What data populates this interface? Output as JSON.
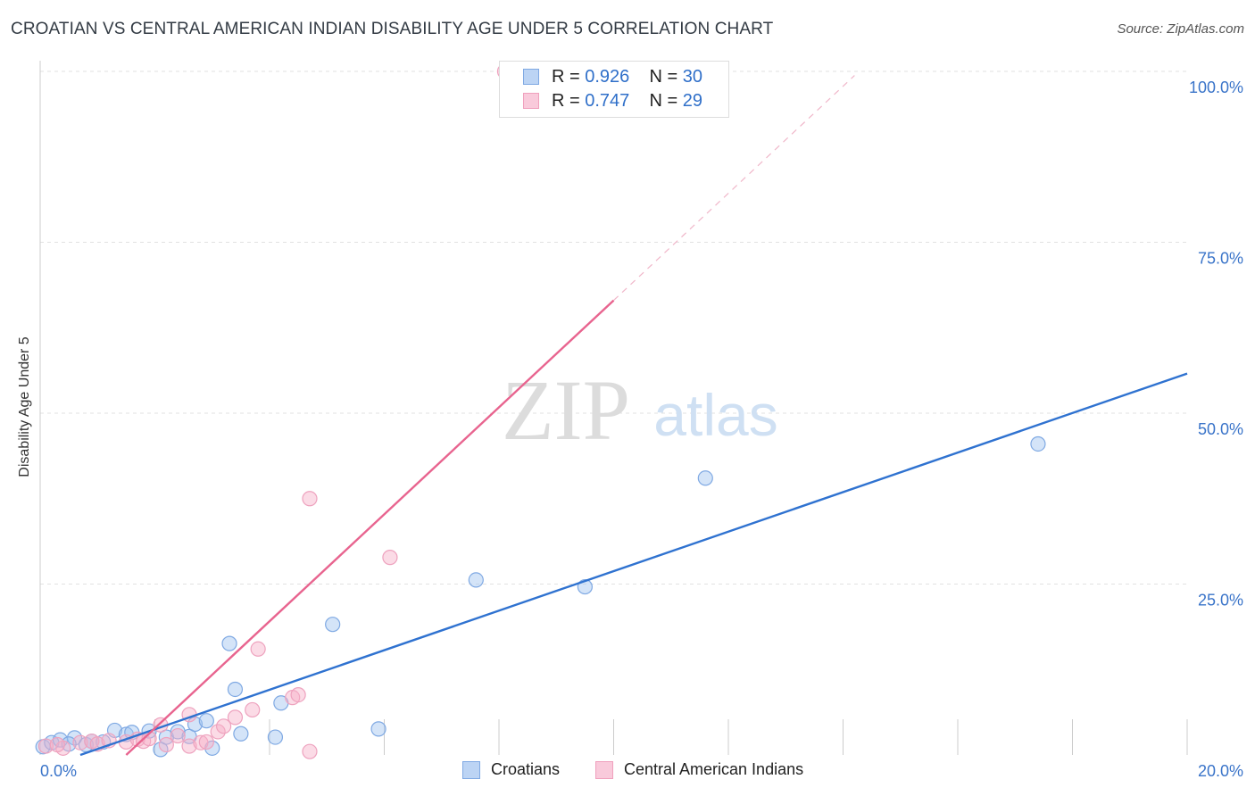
{
  "title": "CROATIAN VS CENTRAL AMERICAN INDIAN DISABILITY AGE UNDER 5 CORRELATION CHART",
  "source": "Source: ZipAtlas.com",
  "watermark": {
    "zip": "ZIP",
    "atlas": "atlas"
  },
  "legend": {
    "series1": {
      "r_label": "R = ",
      "r_value": "0.926",
      "n_label": "N = ",
      "n_value": "30"
    },
    "series2": {
      "r_label": "R = ",
      "r_value": "0.747",
      "n_label": "N = ",
      "n_value": "29"
    }
  },
  "chart_data": {
    "type": "scatter",
    "title": "CROATIAN VS CENTRAL AMERICAN INDIAN DISABILITY AGE UNDER 5 CORRELATION CHART",
    "xlabel": "",
    "ylabel": "Disability Age Under 5",
    "xlim": [
      0,
      20
    ],
    "ylim": [
      0,
      100
    ],
    "x_tick_labels": [
      "0.0%",
      "20.0%"
    ],
    "y_ticks": [
      25,
      50,
      75,
      100
    ],
    "y_tick_labels": [
      "25.0%",
      "50.0%",
      "75.0%",
      "100.0%"
    ],
    "grid": true,
    "legend_position": "top-center",
    "series": [
      {
        "name": "Croatians",
        "color": "#8ab4e8",
        "line_color": "#2f72d0",
        "r": 0.926,
        "n": 30,
        "trend": {
          "x": [
            0.7,
            20.0
          ],
          "y": [
            0.0,
            55.8
          ]
        },
        "points": [
          [
            0.05,
            1.2
          ],
          [
            0.2,
            1.8
          ],
          [
            0.35,
            2.2
          ],
          [
            0.6,
            2.5
          ],
          [
            0.8,
            1.5
          ],
          [
            0.9,
            2.0
          ],
          [
            1.1,
            1.9
          ],
          [
            1.3,
            3.6
          ],
          [
            1.5,
            3.0
          ],
          [
            1.6,
            3.3
          ],
          [
            1.9,
            3.5
          ],
          [
            2.1,
            0.8
          ],
          [
            2.2,
            2.6
          ],
          [
            2.4,
            3.4
          ],
          [
            2.6,
            2.7
          ],
          [
            2.7,
            4.5
          ],
          [
            2.9,
            5.0
          ],
          [
            3.0,
            1.0
          ],
          [
            3.3,
            16.3
          ],
          [
            3.4,
            9.6
          ],
          [
            3.5,
            3.1
          ],
          [
            4.1,
            2.6
          ],
          [
            4.2,
            7.6
          ],
          [
            5.1,
            19.1
          ],
          [
            5.9,
            3.8
          ],
          [
            7.6,
            25.6
          ],
          [
            9.5,
            24.6
          ],
          [
            11.6,
            40.5
          ],
          [
            17.4,
            45.5
          ],
          [
            0.5,
            1.6
          ]
        ]
      },
      {
        "name": "Central American Indians",
        "color": "#f4a8c2",
        "line_color": "#e8648f",
        "r": 0.747,
        "n": 29,
        "trend": {
          "x": [
            1.5,
            10.0
          ],
          "y": [
            0.0,
            66.5
          ],
          "dash_to": {
            "x": 14.2,
            "y": 99.4
          }
        },
        "points": [
          [
            0.1,
            1.3
          ],
          [
            0.4,
            1.0
          ],
          [
            0.7,
            1.8
          ],
          [
            0.9,
            2.0
          ],
          [
            1.0,
            1.6
          ],
          [
            1.2,
            2.1
          ],
          [
            1.5,
            1.9
          ],
          [
            1.7,
            2.3
          ],
          [
            1.8,
            2.0
          ],
          [
            1.9,
            2.4
          ],
          [
            2.2,
            1.5
          ],
          [
            2.1,
            4.4
          ],
          [
            2.4,
            2.8
          ],
          [
            2.6,
            1.3
          ],
          [
            2.6,
            5.9
          ],
          [
            2.8,
            1.8
          ],
          [
            2.9,
            1.9
          ],
          [
            3.1,
            3.4
          ],
          [
            3.2,
            4.2
          ],
          [
            3.4,
            5.5
          ],
          [
            3.7,
            6.6
          ],
          [
            3.8,
            15.5
          ],
          [
            4.4,
            8.4
          ],
          [
            4.5,
            8.8
          ],
          [
            4.7,
            0.5
          ],
          [
            4.7,
            37.5
          ],
          [
            6.1,
            28.9
          ],
          [
            8.1,
            100.0
          ],
          [
            0.3,
            1.5
          ]
        ]
      }
    ]
  },
  "bottom_legend": [
    "Croatians",
    "Central American Indians"
  ]
}
